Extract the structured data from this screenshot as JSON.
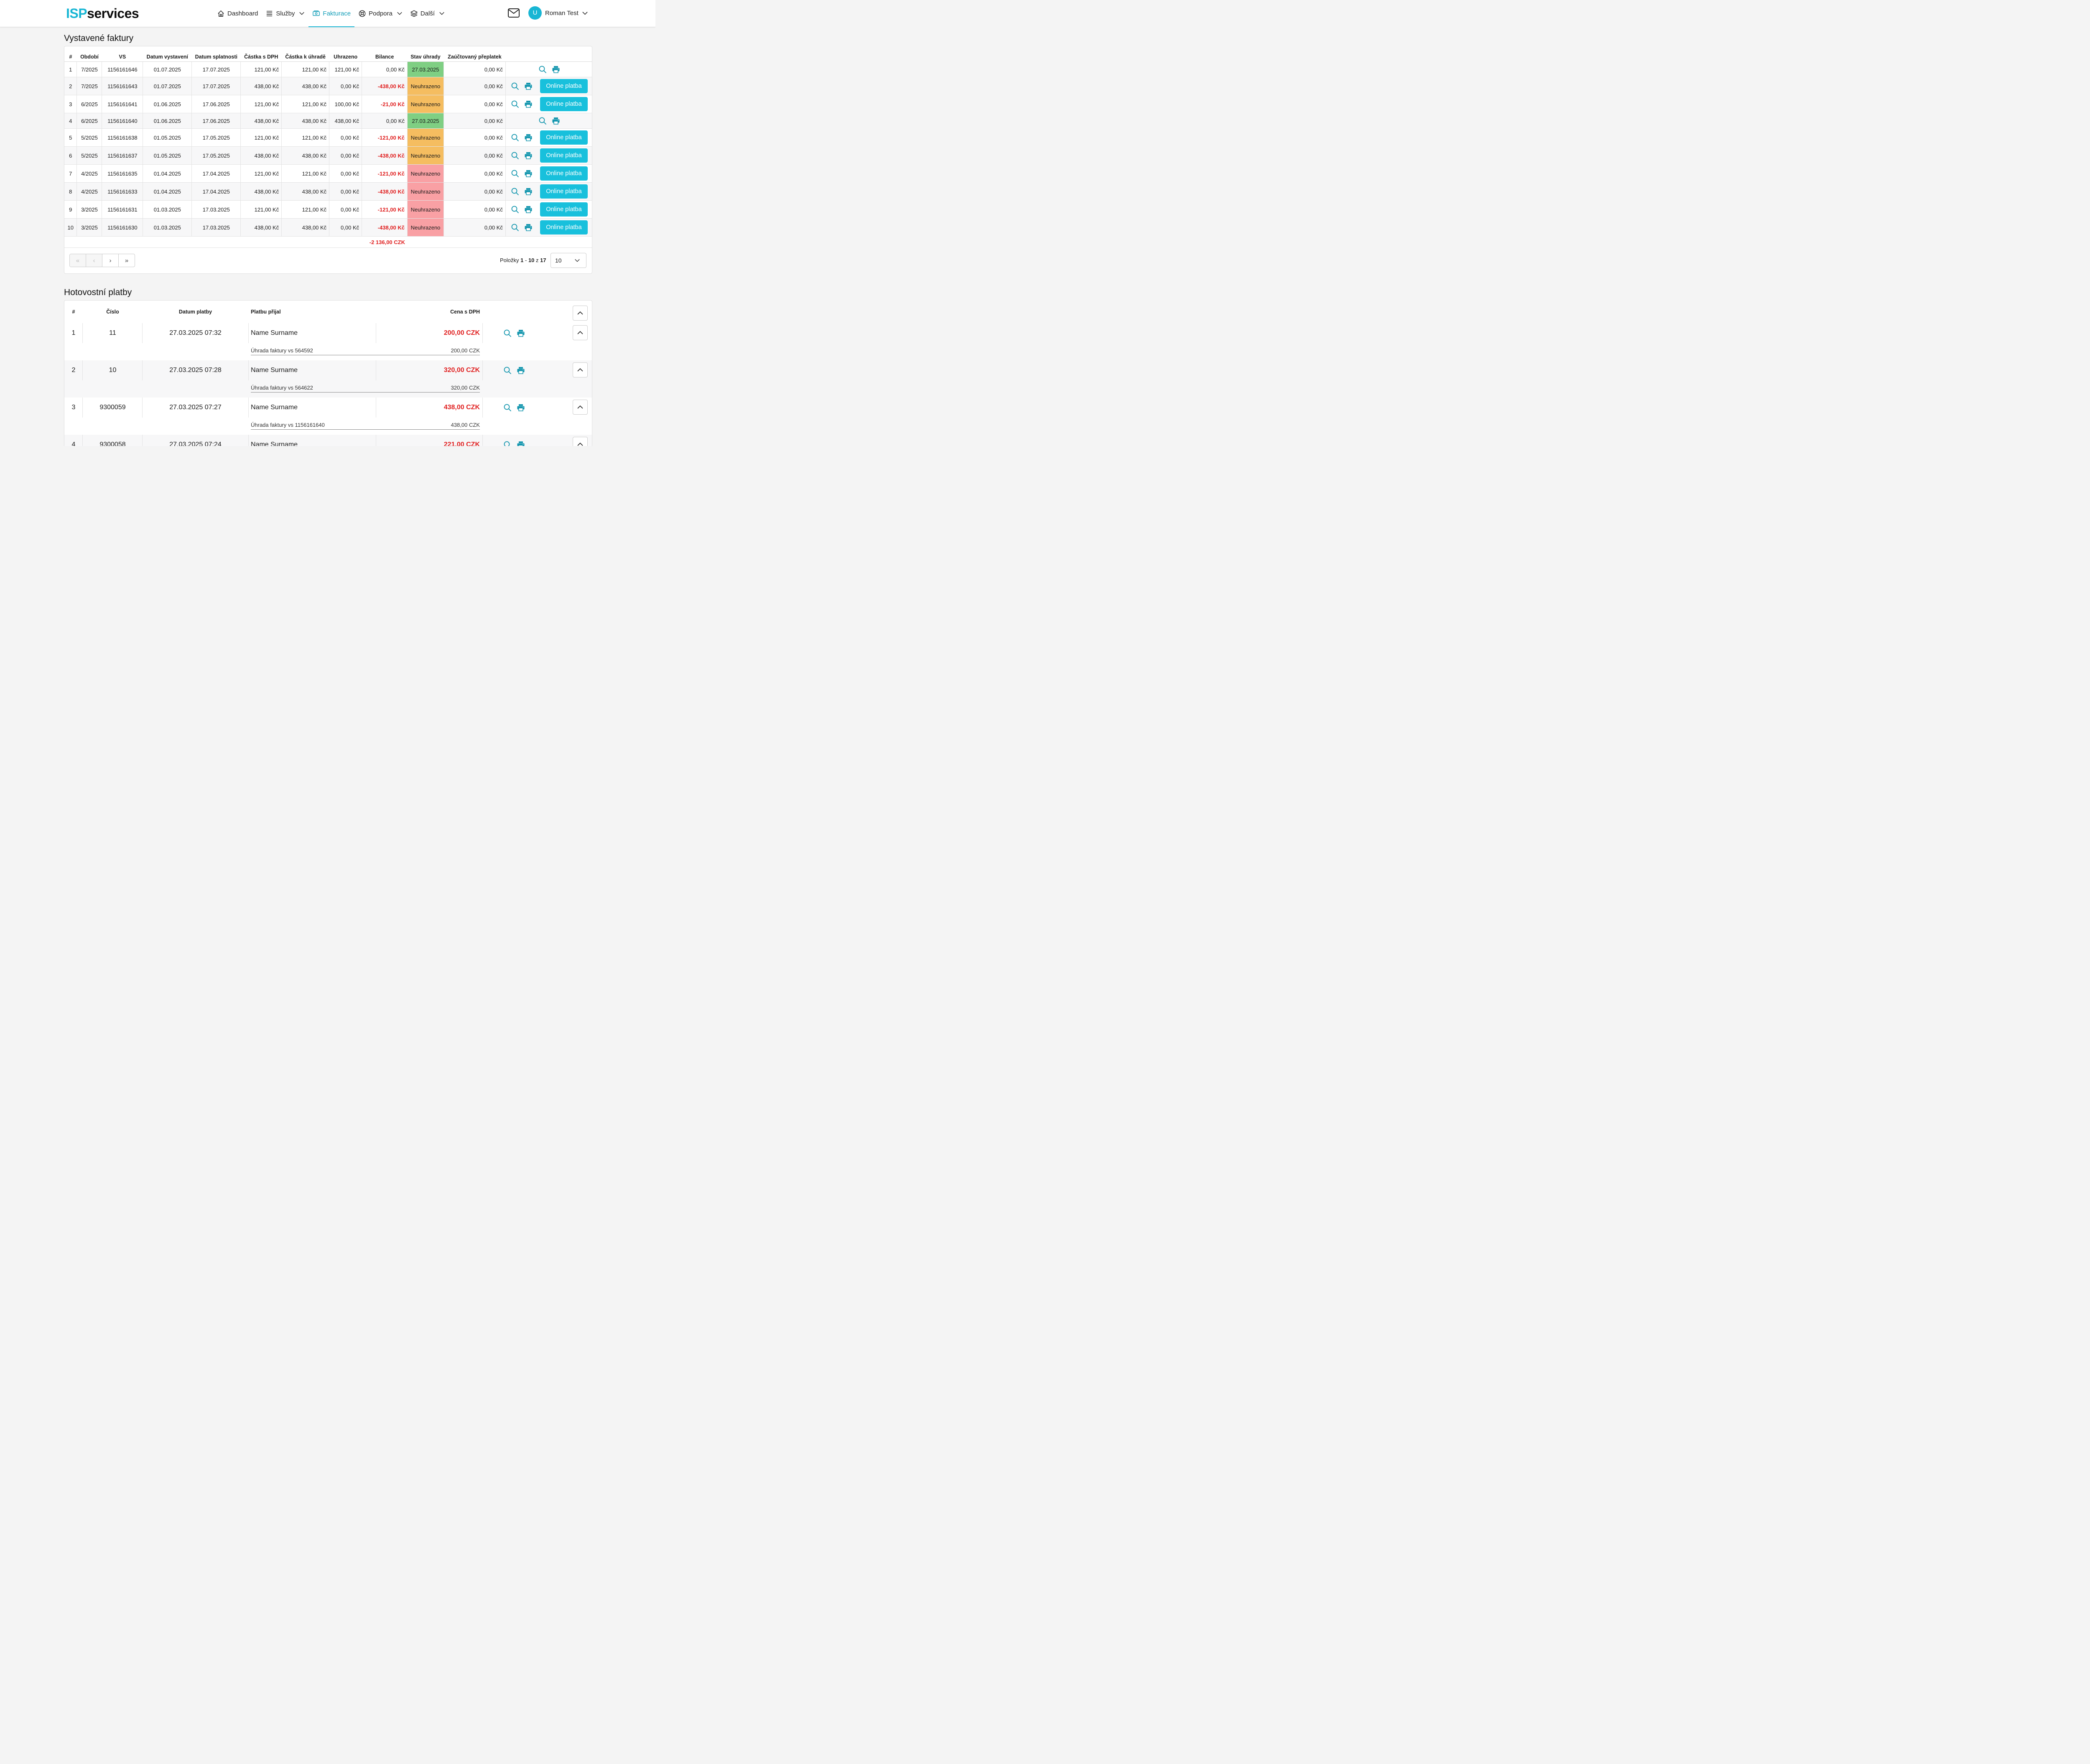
{
  "brand": {
    "part1": "ISP",
    "part2": "services"
  },
  "nav": [
    {
      "label": "Dashboard",
      "icon": "home-icon"
    },
    {
      "label": "Služby",
      "icon": "list-icon",
      "dropdown": true
    },
    {
      "label": "Fakturace",
      "icon": "invoice-icon",
      "active": true
    },
    {
      "label": "Podpora",
      "icon": "support-icon",
      "dropdown": true
    },
    {
      "label": "Další",
      "icon": "layers-icon",
      "dropdown": true
    }
  ],
  "user": {
    "initial": "U",
    "name": "Roman Test"
  },
  "colors": {
    "accent": "#18b6d4",
    "negative": "#e02020",
    "paid": "#7fcf83",
    "unpaid_due": "#f5bd60",
    "unpaid_overdue": "#f9a0a4"
  },
  "invoices": {
    "title": "Vystavené faktury",
    "headers": [
      "#",
      "Období",
      "VS",
      "Datum vystavení",
      "Datum splatnosti",
      "Částka s DPH",
      "Částka k úhradě",
      "Uhrazeno",
      "Bilance",
      "Stav úhrady",
      "Zaúčtovaný přeplatek"
    ],
    "pay_label": "Online platba",
    "rows": [
      {
        "n": "1",
        "period": "7/2025",
        "vs": "1156161646",
        "issued": "01.07.2025",
        "due": "17.07.2025",
        "amount": "121,00 Kč",
        "to_pay": "121,00 Kč",
        "paid": "121,00 Kč",
        "balance": "0,00 Kč",
        "status": "27.03.2025",
        "status_type": "paid",
        "overpay": "0,00 Kč"
      },
      {
        "n": "2",
        "period": "7/2025",
        "vs": "1156161643",
        "issued": "01.07.2025",
        "due": "17.07.2025",
        "amount": "438,00 Kč",
        "to_pay": "438,00 Kč",
        "paid": "0,00 Kč",
        "balance": "-438,00 Kč",
        "status": "Neuhrazeno",
        "status_type": "due",
        "overpay": "0,00 Kč"
      },
      {
        "n": "3",
        "period": "6/2025",
        "vs": "1156161641",
        "issued": "01.06.2025",
        "due": "17.06.2025",
        "amount": "121,00 Kč",
        "to_pay": "121,00 Kč",
        "paid": "100,00 Kč",
        "balance": "-21,00 Kč",
        "status": "Neuhrazeno",
        "status_type": "due",
        "overpay": "0,00 Kč"
      },
      {
        "n": "4",
        "period": "6/2025",
        "vs": "1156161640",
        "issued": "01.06.2025",
        "due": "17.06.2025",
        "amount": "438,00 Kč",
        "to_pay": "438,00 Kč",
        "paid": "438,00 Kč",
        "balance": "0,00 Kč",
        "status": "27.03.2025",
        "status_type": "paid",
        "overpay": "0,00 Kč"
      },
      {
        "n": "5",
        "period": "5/2025",
        "vs": "1156161638",
        "issued": "01.05.2025",
        "due": "17.05.2025",
        "amount": "121,00 Kč",
        "to_pay": "121,00 Kč",
        "paid": "0,00 Kč",
        "balance": "-121,00 Kč",
        "status": "Neuhrazeno",
        "status_type": "due",
        "overpay": "0,00 Kč"
      },
      {
        "n": "6",
        "period": "5/2025",
        "vs": "1156161637",
        "issued": "01.05.2025",
        "due": "17.05.2025",
        "amount": "438,00 Kč",
        "to_pay": "438,00 Kč",
        "paid": "0,00 Kč",
        "balance": "-438,00 Kč",
        "status": "Neuhrazeno",
        "status_type": "due",
        "overpay": "0,00 Kč"
      },
      {
        "n": "7",
        "period": "4/2025",
        "vs": "1156161635",
        "issued": "01.04.2025",
        "due": "17.04.2025",
        "amount": "121,00 Kč",
        "to_pay": "121,00 Kč",
        "paid": "0,00 Kč",
        "balance": "-121,00 Kč",
        "status": "Neuhrazeno",
        "status_type": "overdue",
        "overpay": "0,00 Kč"
      },
      {
        "n": "8",
        "period": "4/2025",
        "vs": "1156161633",
        "issued": "01.04.2025",
        "due": "17.04.2025",
        "amount": "438,00 Kč",
        "to_pay": "438,00 Kč",
        "paid": "0,00 Kč",
        "balance": "-438,00 Kč",
        "status": "Neuhrazeno",
        "status_type": "overdue",
        "overpay": "0,00 Kč"
      },
      {
        "n": "9",
        "period": "3/2025",
        "vs": "1156161631",
        "issued": "01.03.2025",
        "due": "17.03.2025",
        "amount": "121,00 Kč",
        "to_pay": "121,00 Kč",
        "paid": "0,00 Kč",
        "balance": "-121,00 Kč",
        "status": "Neuhrazeno",
        "status_type": "overdue",
        "overpay": "0,00 Kč"
      },
      {
        "n": "10",
        "period": "3/2025",
        "vs": "1156161630",
        "issued": "01.03.2025",
        "due": "17.03.2025",
        "amount": "438,00 Kč",
        "to_pay": "438,00 Kč",
        "paid": "0,00 Kč",
        "balance": "-438,00 Kč",
        "status": "Neuhrazeno",
        "status_type": "overdue",
        "overpay": "0,00 Kč"
      }
    ],
    "total": "-2 136,00 CZK",
    "pagination": {
      "label": "Položky",
      "from": "1",
      "to": "10",
      "of_label": "z",
      "total": "17",
      "page_size": "10"
    }
  },
  "cash": {
    "title": "Hotovostní platby",
    "headers": [
      "#",
      "Číslo",
      "Datum platby",
      "Platbu přijal",
      "Cena s DPH"
    ],
    "rows": [
      {
        "n": "1",
        "number": "11",
        "date": "27.03.2025 07:32",
        "received_by": "Name Surname",
        "price": "200,00 CZK",
        "detail_label": "Úhrada faktury vs 564592",
        "detail_amount": "200,00 CZK"
      },
      {
        "n": "2",
        "number": "10",
        "date": "27.03.2025 07:28",
        "received_by": "Name Surname",
        "price": "320,00 CZK",
        "detail_label": "Úhrada faktury vs 564622",
        "detail_amount": "320,00 CZK"
      },
      {
        "n": "3",
        "number": "9300059",
        "date": "27.03.2025 07:27",
        "received_by": "Name Surname",
        "price": "438,00 CZK",
        "detail_label": "Úhrada faktury vs 1156161640",
        "detail_amount": "438,00 CZK"
      },
      {
        "n": "4",
        "number": "9300058",
        "date": "27.03.2025 07:24",
        "received_by": "Name Surname",
        "price": "221,00 CZK"
      }
    ]
  }
}
